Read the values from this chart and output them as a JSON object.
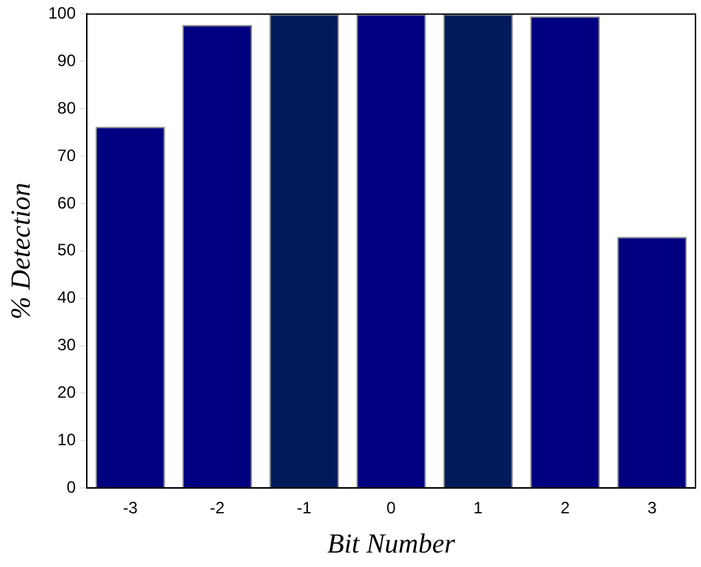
{
  "chart_data": {
    "type": "bar",
    "xlabel": "Bit Number",
    "ylabel": "% Detection",
    "categories": [
      "-3",
      "-2",
      "-1",
      "0",
      "1",
      "2",
      "3"
    ],
    "values": [
      76.2,
      97.7,
      100,
      100,
      100,
      99.5,
      53
    ],
    "colors": [
      "#000080",
      "#000080",
      "#001a5c",
      "#000080",
      "#001a5c",
      "#000080",
      "#000080"
    ],
    "ylim": [
      0,
      100
    ],
    "yticks": [
      0,
      10,
      20,
      30,
      40,
      50,
      60,
      70,
      80,
      90,
      100
    ],
    "grid": false,
    "legend": false
  }
}
